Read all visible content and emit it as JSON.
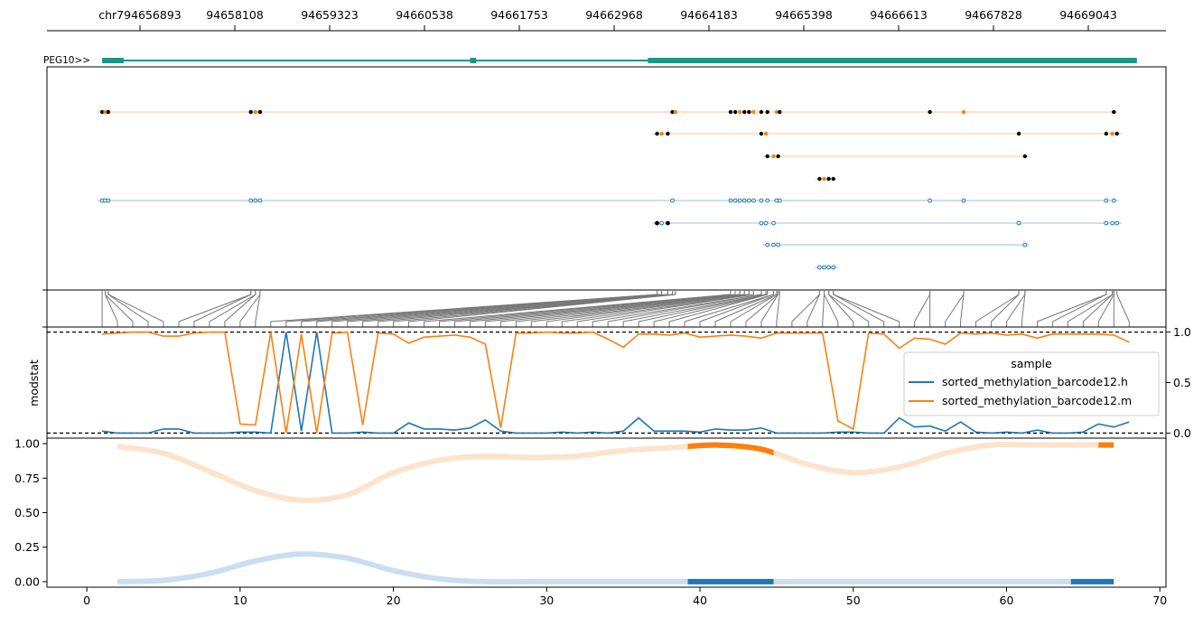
{
  "chart_data": [
    {
      "type": "genome-track",
      "panel": "coordinate-axis",
      "tick_labels": [
        "chr794656893",
        "94658108",
        "94659323",
        "94660538",
        "94661753",
        "94662968",
        "94664183",
        "94665398",
        "94666613",
        "94667828",
        "94669043"
      ],
      "gene": {
        "name": "PEG10>>",
        "color": "#1b9689",
        "exons": [
          [
            1,
            2.4
          ],
          [
            25,
            25.4
          ],
          [
            36.6,
            68.5
          ]
        ],
        "intron_span": [
          1,
          68.5
        ]
      }
    },
    {
      "type": "scatter",
      "panel": "read-level-calls",
      "xlim": [
        -2.6,
        70.4
      ],
      "colors": {
        "h": "#1f77b4",
        "m": "#ff7f0e",
        "call": "#000000"
      },
      "m_rows": [
        {
          "row": 0,
          "points": [
            1.0,
            1.2,
            1.4,
            10.7,
            11.0,
            11.3,
            38.2,
            38.4,
            42.0,
            42.3,
            42.6,
            42.9,
            43.2,
            43.5,
            44.0,
            44.4,
            45.0,
            45.2,
            55.0,
            57.2,
            67.0
          ]
        },
        {
          "row": 1,
          "points": [
            37.2,
            37.5,
            37.9,
            44.0,
            44.3,
            60.8,
            66.5,
            66.9,
            67.2
          ]
        },
        {
          "row": 2,
          "points": [
            44.4,
            44.8,
            45.1,
            61.2
          ]
        },
        {
          "row": 3,
          "points": [
            47.8,
            48.1,
            48.4,
            48.7
          ]
        }
      ],
      "h_rows": [
        {
          "row": 0,
          "points": [
            1.0,
            1.2,
            1.4,
            10.7,
            11.0,
            11.3,
            38.2,
            42.0,
            42.3,
            42.6,
            42.9,
            43.2,
            43.5,
            44.0,
            44.4,
            45.0,
            45.2,
            55.0,
            57.2,
            66.5,
            67.0
          ]
        },
        {
          "row": 1,
          "points": [
            37.2,
            37.5,
            37.9,
            44.0,
            44.3,
            44.8,
            60.8,
            66.5,
            66.9,
            67.2
          ]
        },
        {
          "row": 2,
          "points": [
            44.4,
            44.8,
            45.1,
            61.2
          ]
        },
        {
          "row": 3,
          "points": [
            47.8,
            48.1,
            48.4,
            48.7
          ]
        }
      ]
    },
    {
      "type": "line",
      "panel": "modstat",
      "ylabel": "modstat",
      "yticks": [
        "0.0",
        "0.5",
        "1.0"
      ],
      "ylim": [
        -0.05,
        1.05
      ],
      "reference_lines": [
        0.0,
        1.0
      ],
      "legend": {
        "title": "sample",
        "position": "right"
      },
      "x": [
        0,
        1,
        2,
        3,
        4,
        5,
        6,
        7,
        8,
        9,
        10,
        11,
        12,
        13,
        14,
        15,
        16,
        17,
        18,
        19,
        20,
        21,
        22,
        23,
        24,
        25,
        26,
        27,
        28,
        29,
        30,
        31,
        32,
        33,
        34,
        35,
        36,
        37,
        38,
        39,
        40,
        41,
        42,
        43,
        44,
        45,
        46,
        47,
        48,
        49,
        50,
        51,
        52,
        53,
        54,
        55,
        56,
        57,
        58,
        59,
        60,
        61,
        62,
        63,
        64,
        65,
        66,
        67
      ],
      "series": [
        {
          "name": "sorted_methylation_barcode12.h",
          "color": "#1f77b4",
          "values": [
            0.02,
            0.0,
            0.0,
            0.0,
            0.04,
            0.04,
            0.0,
            0.0,
            0.0,
            0.01,
            0.01,
            0.0,
            1.0,
            0.02,
            1.0,
            0.0,
            0.0,
            0.01,
            0.0,
            0.0,
            0.1,
            0.04,
            0.04,
            0.03,
            0.05,
            0.13,
            0.02,
            0.0,
            0.0,
            0.0,
            0.01,
            0.0,
            0.01,
            0.0,
            0.02,
            0.15,
            0.02,
            0.02,
            0.02,
            0.01,
            0.04,
            0.03,
            0.03,
            0.05,
            0.0,
            0.0,
            0.0,
            0.0,
            0.01,
            0.01,
            0.0,
            0.0,
            0.15,
            0.06,
            0.07,
            0.02,
            0.11,
            0.01,
            0.0,
            0.01,
            0.0,
            0.03,
            0.0,
            0.0,
            0.01,
            0.09,
            0.06,
            0.11
          ]
        },
        {
          "name": "sorted_methylation_barcode12.m",
          "color": "#ff7f0e",
          "values": [
            0.98,
            0.99,
            1.0,
            1.0,
            0.96,
            0.96,
            0.99,
            1.0,
            1.0,
            0.09,
            0.08,
            1.0,
            0.0,
            0.98,
            0.0,
            0.99,
            1.0,
            0.08,
            0.99,
            0.98,
            0.89,
            0.95,
            0.96,
            0.97,
            0.95,
            0.88,
            0.05,
            0.99,
            0.99,
            1.0,
            0.99,
            0.99,
            1.0,
            0.93,
            0.85,
            0.98,
            0.98,
            0.97,
            0.99,
            0.95,
            0.96,
            0.97,
            0.96,
            0.94,
            0.99,
            0.99,
            0.99,
            0.99,
            0.12,
            0.04,
            0.99,
            0.98,
            0.84,
            0.94,
            0.93,
            0.88,
            0.99,
            0.98,
            0.99,
            0.97,
            0.98,
            0.94,
            0.98,
            0.98,
            0.98,
            0.98,
            0.97,
            0.9
          ]
        }
      ]
    },
    {
      "type": "line",
      "panel": "smoothed",
      "xlabel": "",
      "ylabel": "",
      "xticks": [
        "0",
        "10",
        "20",
        "30",
        "40",
        "50",
        "60",
        "70"
      ],
      "yticks": [
        "0.00",
        "0.25",
        "0.50",
        "0.75",
        "1.00"
      ],
      "xlim": [
        -2.6,
        70.4
      ],
      "ylim": [
        -0.04,
        1.04
      ],
      "series": [
        {
          "name": "m",
          "color": "#ff7f0e",
          "faint_color": "#fde3cc",
          "points": [
            [
              2,
              0.98
            ],
            [
              5,
              0.93
            ],
            [
              8,
              0.8
            ],
            [
              11,
              0.66
            ],
            [
              14,
              0.59
            ],
            [
              17,
              0.63
            ],
            [
              20,
              0.79
            ],
            [
              23,
              0.88
            ],
            [
              26,
              0.91
            ],
            [
              29,
              0.9
            ],
            [
              32,
              0.91
            ],
            [
              35,
              0.95
            ],
            [
              38,
              0.97
            ],
            [
              41,
              0.99
            ],
            [
              44,
              0.96
            ],
            [
              47,
              0.85
            ],
            [
              50,
              0.79
            ],
            [
              53,
              0.83
            ],
            [
              56,
              0.93
            ],
            [
              59,
              0.99
            ],
            [
              62,
              0.99
            ],
            [
              65,
              0.99
            ],
            [
              67,
              0.99
            ]
          ],
          "highlight_ranges": [
            [
              39.2,
              44.8
            ],
            [
              66,
              67
            ]
          ]
        },
        {
          "name": "h",
          "color": "#1f77b4",
          "faint_color": "#c9dff0",
          "points": [
            [
              2,
              0.0
            ],
            [
              5,
              0.01
            ],
            [
              8,
              0.06
            ],
            [
              11,
              0.15
            ],
            [
              14,
              0.2
            ],
            [
              17,
              0.17
            ],
            [
              20,
              0.08
            ],
            [
              23,
              0.02
            ],
            [
              26,
              0.0
            ],
            [
              29,
              0.0
            ],
            [
              32,
              0.0
            ],
            [
              35,
              0.0
            ],
            [
              38,
              0.0
            ],
            [
              41,
              0.0
            ],
            [
              44,
              0.0
            ],
            [
              47,
              0.0
            ],
            [
              50,
              0.0
            ],
            [
              53,
              0.0
            ],
            [
              56,
              0.0
            ],
            [
              59,
              0.0
            ],
            [
              62,
              0.0
            ],
            [
              65,
              0.0
            ],
            [
              67,
              0.0
            ]
          ],
          "highlight_ranges": [
            [
              39.2,
              44.8
            ],
            [
              64.2,
              67
            ]
          ]
        }
      ]
    }
  ]
}
